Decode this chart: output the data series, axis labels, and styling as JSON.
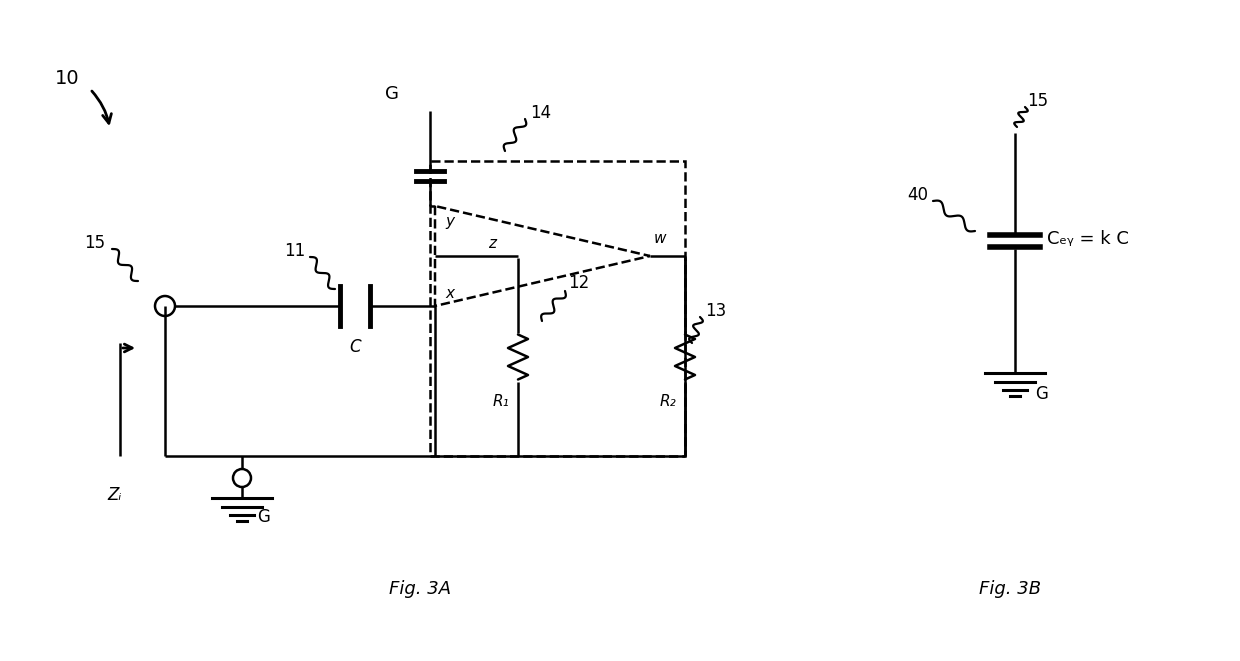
{
  "bg_color": "#ffffff",
  "line_color": "#000000",
  "fig_width": 12.4,
  "fig_height": 6.61,
  "label_10": "10",
  "label_14": "14",
  "label_15_a": "15",
  "label_15_b": "15",
  "label_11": "11",
  "label_12": "12",
  "label_13": "13",
  "label_40": "40",
  "label_G_top": "G",
  "label_G_bot": "G",
  "label_G_bot2": "G",
  "label_C": "C",
  "label_R1": "R₁",
  "label_R2": "R₂",
  "label_Zi": "Zᵢ",
  "label_x": "x",
  "label_y": "y",
  "label_z": "z",
  "label_w": "w",
  "label_ceq": "Cₑᵧ = k C",
  "fig3a": "Fig. 3A",
  "fig3b": "Fig. 3B"
}
